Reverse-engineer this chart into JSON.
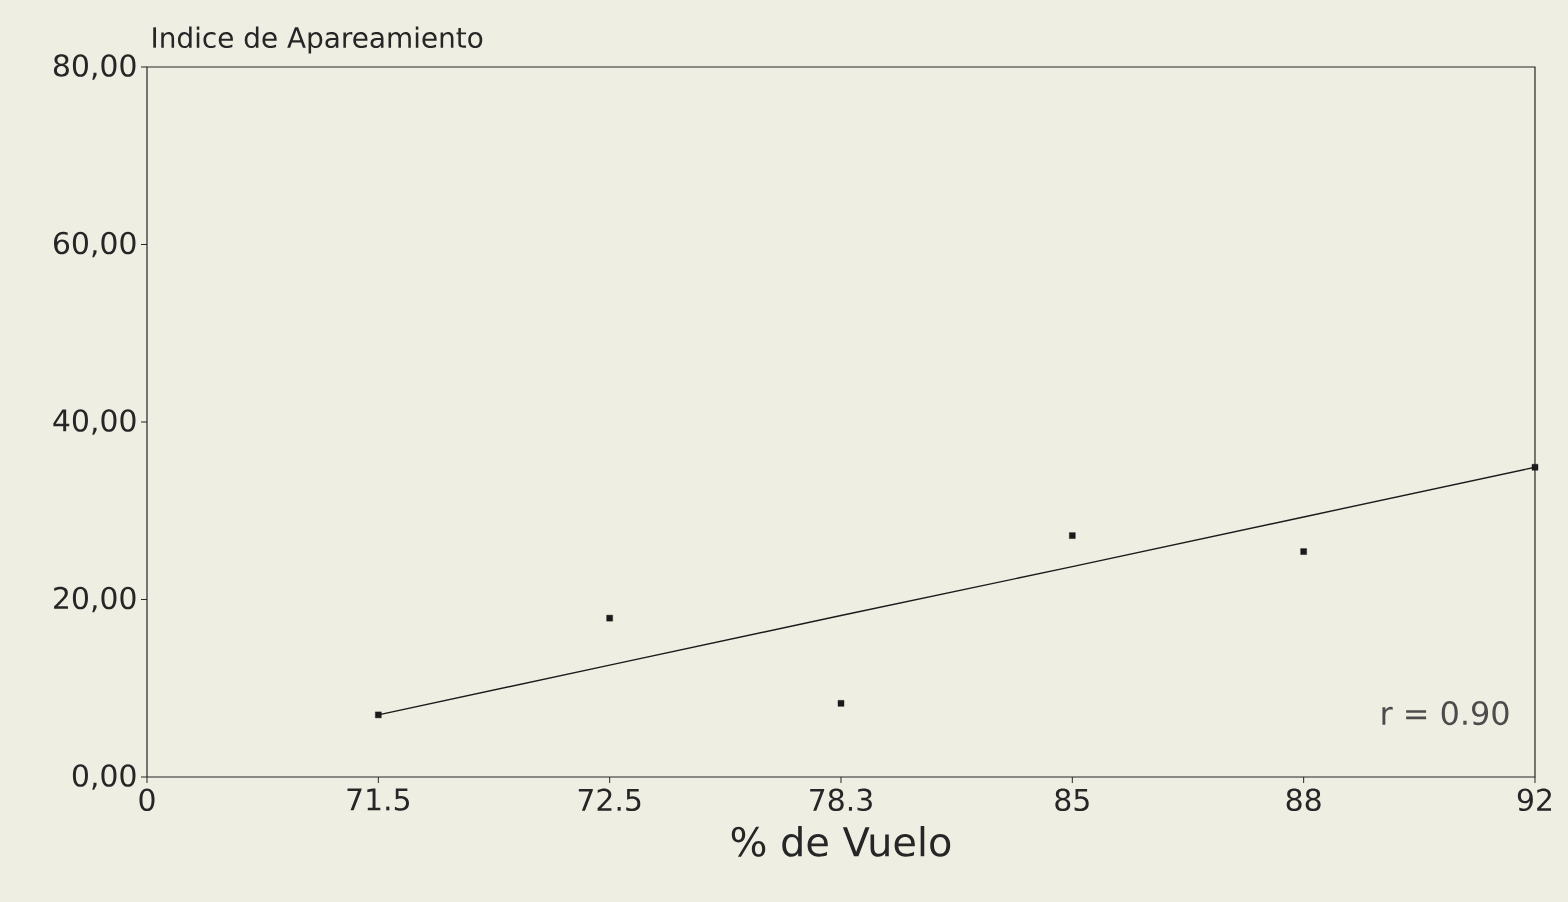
{
  "chart_data": {
    "type": "scatter",
    "ylabel": "Indice de Apareamiento",
    "xlabel": "% de Vuelo",
    "categories": [
      "0",
      "71.5",
      "72.5",
      "78.3",
      "85",
      "88",
      "92"
    ],
    "series": [
      {
        "color": "#1a1a1a",
        "marker": "square",
        "values": [
          null,
          7.0,
          17.9,
          8.3,
          27.2,
          25.4,
          34.9
        ]
      },
      {
        "type": "line",
        "color": "#1a1a1a",
        "marker": "none",
        "line_style": "solid",
        "values": [
          null,
          7.0,
          12.6,
          18.2,
          23.7,
          29.3,
          34.9
        ]
      }
    ],
    "ylim": [
      0,
      80
    ],
    "yticks": [
      {
        "value": 0,
        "label": "0,00"
      },
      {
        "value": 20,
        "label": "20,00"
      },
      {
        "value": 40,
        "label": "40,00"
      },
      {
        "value": 60,
        "label": "60,00"
      },
      {
        "value": 80,
        "label": "80,00"
      }
    ],
    "annotations": [
      "r = 0.90"
    ],
    "grid": false
  }
}
